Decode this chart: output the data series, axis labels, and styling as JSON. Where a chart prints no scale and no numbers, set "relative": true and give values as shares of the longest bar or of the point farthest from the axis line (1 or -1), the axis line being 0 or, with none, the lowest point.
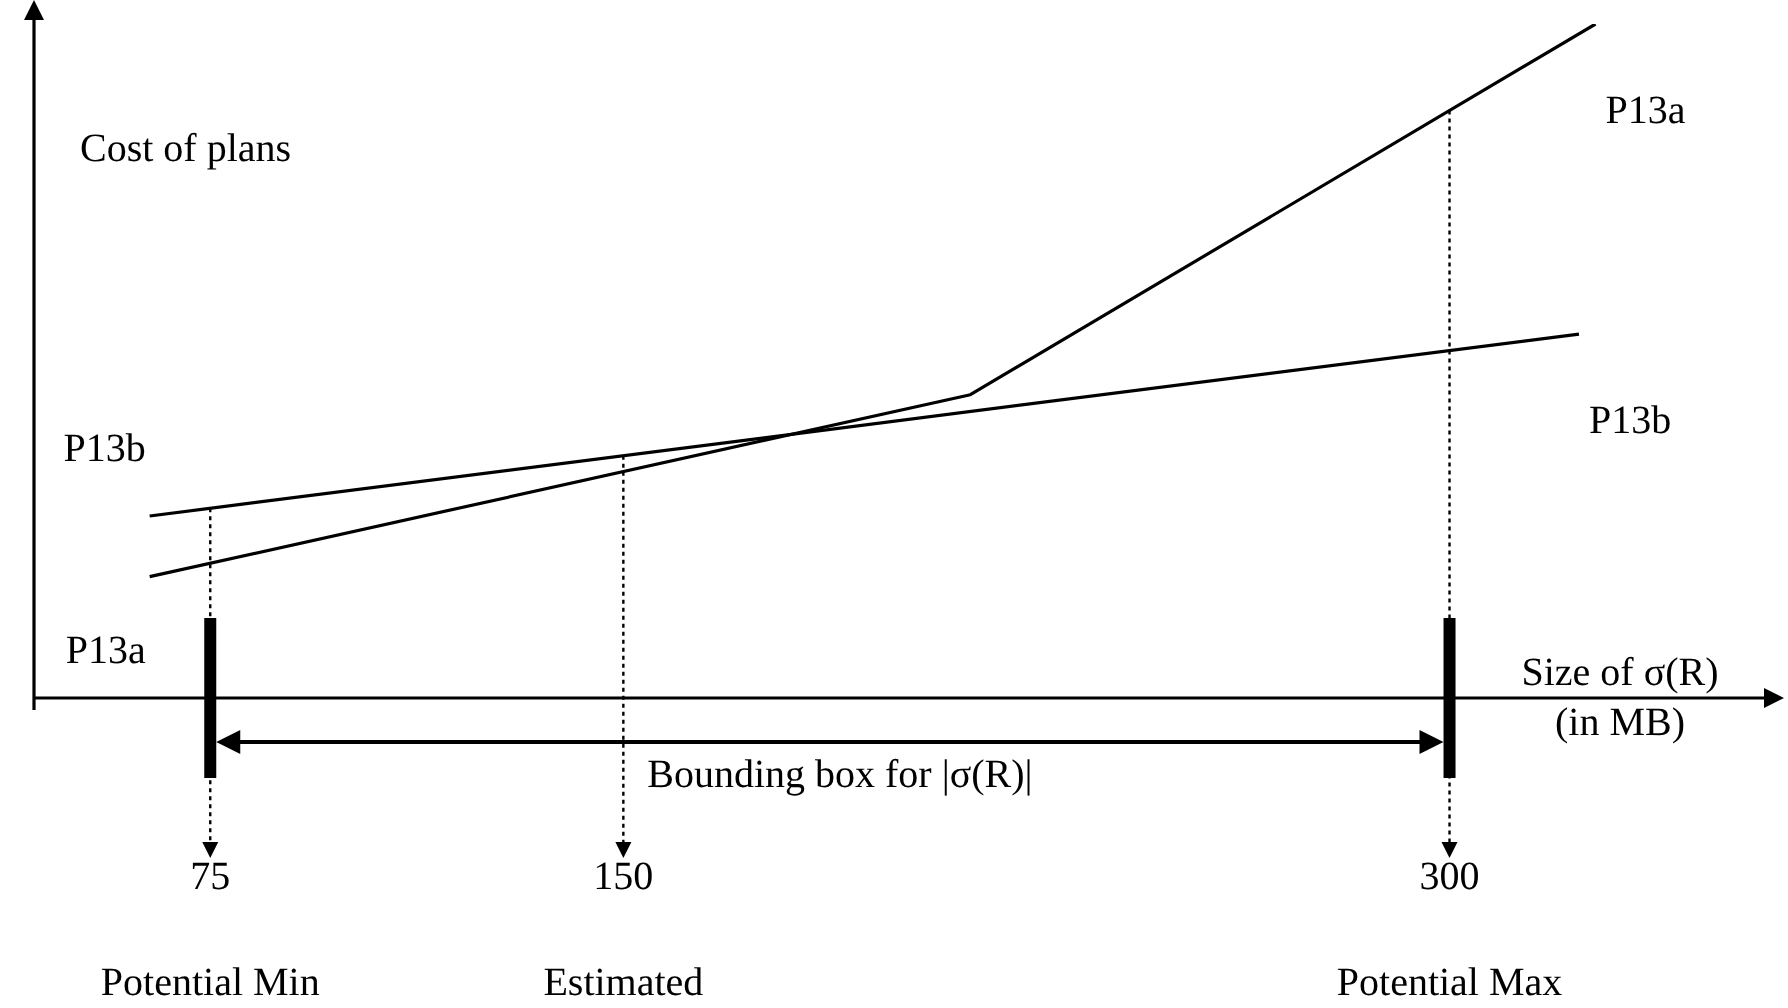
{
  "chart_data": {
    "type": "line",
    "relative": true,
    "ylabel": "Cost of plans",
    "xlabel": "Size of σ(R) (in MB)",
    "xlim": [
      43,
      360
    ],
    "xticks": [
      75,
      150,
      300
    ],
    "tick_labels": "x",
    "grid": false,
    "legend": false,
    "series": [
      {
        "name": "P13b",
        "color": "#000000",
        "x": [
          64,
          323.5
        ],
        "values": [
          0.27,
          0.54
        ]
      },
      {
        "name": "P13a",
        "color": "#000000",
        "x": [
          64,
          213,
          326.5
        ],
        "values": [
          0.18,
          0.45,
          1
        ]
      }
    ],
    "ref_lines": [
      {
        "axis": "x",
        "value": 75,
        "line_style": "dotted"
      },
      {
        "axis": "x",
        "value": 150,
        "line_style": "dotted"
      },
      {
        "axis": "x",
        "value": 300,
        "line_style": "dotted"
      }
    ],
    "annotations": [
      "Bounding box for |σ(R)|",
      "Potential Min",
      "Estimated",
      "Potential Max"
    ]
  }
}
